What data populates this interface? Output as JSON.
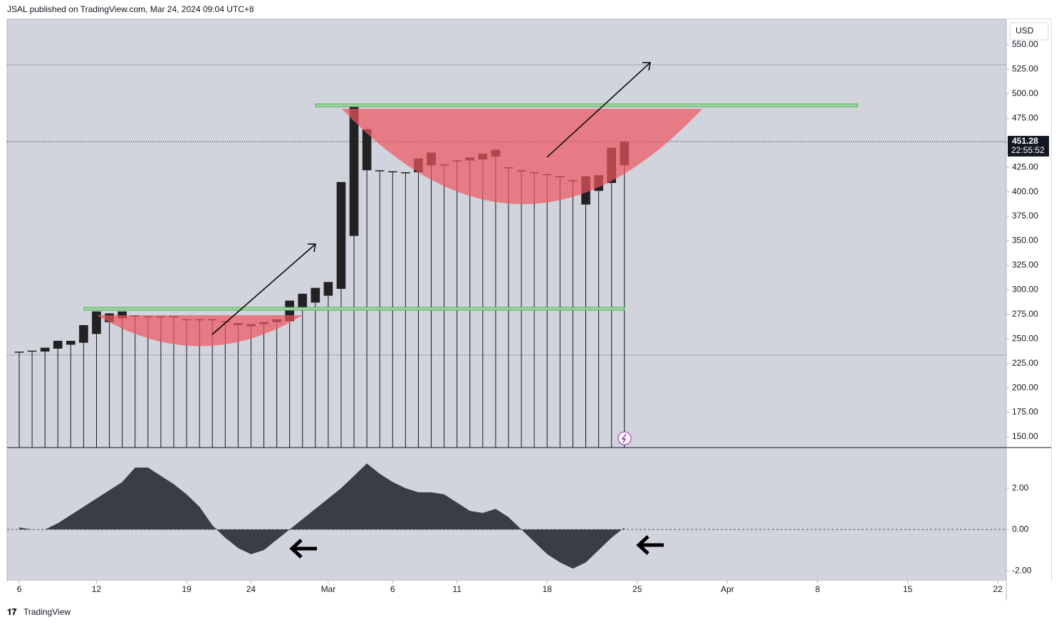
{
  "header": "JSAL published on TradingView.com, Mar 24, 2024 09:04 UTC+8",
  "footer": "TradingView",
  "chart_data": [
    {
      "type": "candlestick",
      "currency": "USD",
      "last_price": {
        "value": 451.28,
        "label": "451.28"
      },
      "countdown": "22:55:52",
      "color": "#222222",
      "open": [
        236,
        237,
        237,
        240,
        244,
        246,
        255,
        276,
        271,
        274,
        273,
        273,
        273,
        270,
        270,
        270,
        268,
        264,
        263,
        265,
        267,
        268,
        280,
        287,
        294,
        301,
        355,
        464,
        422,
        421,
        420,
        420,
        427,
        428,
        432,
        432,
        433,
        436,
        425,
        422,
        420,
        418,
        416,
        412,
        416,
        401,
        409,
        427
      ],
      "close": [
        237,
        238,
        241,
        248,
        248,
        264,
        278,
        267,
        278,
        274,
        273,
        273,
        273,
        270,
        270,
        270,
        268,
        266,
        265,
        267,
        270,
        289,
        296,
        302,
        308,
        410,
        490,
        422,
        422,
        420,
        420,
        434,
        440,
        428,
        432,
        435,
        439,
        443,
        425,
        422,
        420,
        418,
        416,
        412,
        387,
        417,
        445,
        451.28
      ],
      "xlim": [
        -0.94,
        76.66
      ],
      "xticks": [
        {
          "value": 0,
          "label": "6"
        },
        {
          "value": 6,
          "label": "12"
        },
        {
          "value": 13,
          "label": "19"
        },
        {
          "value": 18,
          "label": "24"
        },
        {
          "value": 24,
          "label": "Mar"
        },
        {
          "value": 29,
          "label": "6"
        },
        {
          "value": 34,
          "label": "11"
        },
        {
          "value": 41,
          "label": "18"
        },
        {
          "value": 48,
          "label": "25"
        },
        {
          "value": 55,
          "label": "Apr"
        },
        {
          "value": 62,
          "label": "8"
        },
        {
          "value": 69,
          "label": "15"
        },
        {
          "value": 76,
          "label": "22"
        }
      ],
      "ylim": [
        139.1,
        576.1
      ],
      "yticks": [
        {
          "value": 150,
          "label": "150.00"
        },
        {
          "value": 175,
          "label": "175.00"
        },
        {
          "value": 200,
          "label": "200.00"
        },
        {
          "value": 225,
          "label": "225.00"
        },
        {
          "value": 250,
          "label": "250.00"
        },
        {
          "value": 275,
          "label": "275.00"
        },
        {
          "value": 300,
          "label": "300.00"
        },
        {
          "value": 325,
          "label": "325.00"
        },
        {
          "value": 350,
          "label": "350.00"
        },
        {
          "value": 375,
          "label": "375.00"
        },
        {
          "value": 400,
          "label": "400.00"
        },
        {
          "value": 425,
          "label": "425.00"
        },
        {
          "value": 450,
          "label": "450.00"
        },
        {
          "value": 475,
          "label": "475.00"
        },
        {
          "value": 500,
          "label": "500.00"
        },
        {
          "value": 525,
          "label": "525.00"
        },
        {
          "value": 550,
          "label": "550.00"
        }
      ]
    },
    {
      "type": "area",
      "color": "#3a3d46",
      "values": [
        0.1,
        0,
        0,
        0.3,
        0.7,
        1.1,
        1.5,
        1.9,
        2.3,
        3.0,
        3.0,
        2.6,
        2.2,
        1.7,
        1.1,
        0.2,
        -0.4,
        -0.9,
        -1.2,
        -1.0,
        -0.5,
        0,
        0.5,
        1.0,
        1.5,
        2.0,
        2.6,
        3.2,
        2.7,
        2.3,
        2.0,
        1.8,
        1.8,
        1.7,
        1.3,
        0.9,
        0.8,
        1.0,
        0.6,
        0,
        -0.6,
        -1.2,
        -1.6,
        -1.9,
        -1.6,
        -1.0,
        -0.4,
        0.1
      ],
      "xlim": [
        -0.94,
        76.66
      ],
      "ylim": [
        -2.48,
        3.97
      ],
      "yticks": [
        {
          "value": -2,
          "label": "-2.00"
        },
        {
          "value": 0,
          "label": "0.00"
        },
        {
          "value": 2,
          "label": "2.00"
        }
      ]
    }
  ]
}
